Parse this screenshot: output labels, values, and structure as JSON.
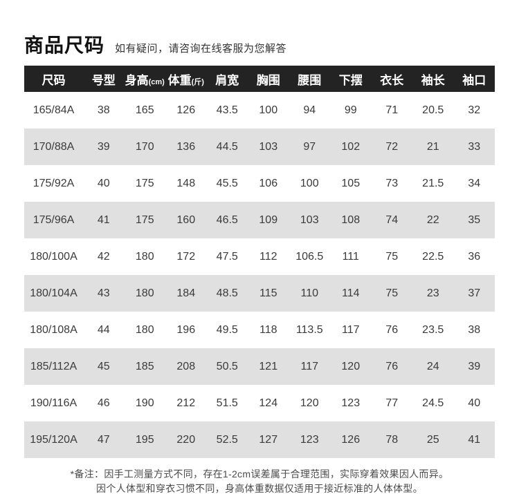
{
  "page": {
    "title": "商品尺码",
    "subtitle": "如有疑问，请咨询在线客服为您解答"
  },
  "table": {
    "columns": [
      {
        "label": "尺码",
        "unit": ""
      },
      {
        "label": "号型",
        "unit": ""
      },
      {
        "label": "身高",
        "unit": "(cm)"
      },
      {
        "label": "体重",
        "unit": "(斤)"
      },
      {
        "label": "肩宽",
        "unit": ""
      },
      {
        "label": "胸围",
        "unit": ""
      },
      {
        "label": "腰围",
        "unit": ""
      },
      {
        "label": "下摆",
        "unit": ""
      },
      {
        "label": "衣长",
        "unit": ""
      },
      {
        "label": "袖长",
        "unit": ""
      },
      {
        "label": "袖口",
        "unit": ""
      }
    ],
    "rows": [
      [
        "165/84A",
        "38",
        "165",
        "126",
        "43.5",
        "100",
        "94",
        "99",
        "71",
        "20.5",
        "32"
      ],
      [
        "170/88A",
        "39",
        "170",
        "136",
        "44.5",
        "103",
        "97",
        "102",
        "72",
        "21",
        "33"
      ],
      [
        "175/92A",
        "40",
        "175",
        "148",
        "45.5",
        "106",
        "100",
        "105",
        "73",
        "21.5",
        "34"
      ],
      [
        "175/96A",
        "41",
        "175",
        "160",
        "46.5",
        "109",
        "103",
        "108",
        "74",
        "22",
        "35"
      ],
      [
        "180/100A",
        "42",
        "180",
        "172",
        "47.5",
        "112",
        "106.5",
        "111",
        "75",
        "22.5",
        "36"
      ],
      [
        "180/104A",
        "43",
        "180",
        "184",
        "48.5",
        "115",
        "110",
        "114",
        "75",
        "23",
        "37"
      ],
      [
        "180/108A",
        "44",
        "180",
        "196",
        "49.5",
        "118",
        "113.5",
        "117",
        "76",
        "23.5",
        "38"
      ],
      [
        "185/112A",
        "45",
        "185",
        "208",
        "50.5",
        "121",
        "117",
        "120",
        "76",
        "24",
        "39"
      ],
      [
        "190/116A",
        "46",
        "190",
        "212",
        "51.5",
        "124",
        "120",
        "123",
        "77",
        "24.5",
        "40"
      ],
      [
        "195/120A",
        "47",
        "195",
        "220",
        "52.5",
        "127",
        "123",
        "126",
        "78",
        "25",
        "41"
      ]
    ]
  },
  "notes": {
    "line1": "*备注：因手工测量方式不同，存在1-2cm误差属于合理范围，实际穿着效果因人而异。",
    "line2": "因个人体型和穿衣习惯不同，身高体重数据仅适用于接近标准的人体体型。"
  },
  "colors": {
    "header_bg": "#232323",
    "header_text": "#ffffff",
    "row_alt_bg": "#e0e0e0",
    "text": "#3a3a3a"
  }
}
